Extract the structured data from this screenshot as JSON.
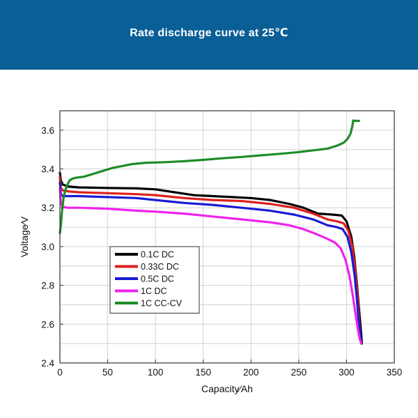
{
  "header": {
    "title": "Rate discharge curve at 25℃",
    "background": "#0a5f96"
  },
  "chart_data": {
    "type": "line",
    "title": "Rate discharge curve at 25℃",
    "xlabel": "Capacity∕Ah",
    "ylabel": "Voltage∕V",
    "xlim": [
      0,
      350
    ],
    "ylim": [
      2.4,
      3.7
    ],
    "xticks": [
      0,
      50,
      100,
      150,
      200,
      250,
      300,
      350
    ],
    "yticks": [
      2.4,
      2.6,
      2.8,
      3.0,
      3.2,
      3.4,
      3.6
    ],
    "xtick_labels": [
      "0",
      "50",
      "100",
      "150",
      "200",
      "250",
      "300",
      "350"
    ],
    "ytick_labels": [
      "2.4",
      "2.6",
      "2.8",
      "3.0",
      "3.2",
      "3.4",
      "3.6"
    ],
    "grid": true,
    "legend_position": "lower-left",
    "series": [
      {
        "name": "0.1C DC",
        "color": "#000000",
        "x": [
          0,
          1,
          3,
          8,
          20,
          50,
          80,
          100,
          120,
          140,
          160,
          180,
          200,
          220,
          240,
          255,
          270,
          285,
          295,
          300,
          305,
          308,
          311,
          313,
          314.5,
          315.5,
          316
        ],
        "y": [
          3.38,
          3.34,
          3.32,
          3.31,
          3.305,
          3.302,
          3.3,
          3.295,
          3.28,
          3.265,
          3.26,
          3.255,
          3.25,
          3.24,
          3.22,
          3.2,
          3.17,
          3.165,
          3.16,
          3.13,
          3.05,
          2.95,
          2.8,
          2.68,
          2.6,
          2.54,
          2.5
        ]
      },
      {
        "name": "0.33C DC",
        "color": "#e0201b",
        "x": [
          0,
          1,
          3,
          8,
          20,
          50,
          80,
          100,
          130,
          160,
          190,
          220,
          245,
          265,
          280,
          290,
          297,
          302,
          306,
          309,
          311.5,
          313.5,
          314.5,
          315.5
        ],
        "y": [
          3.36,
          3.3,
          3.29,
          3.285,
          3.28,
          3.275,
          3.27,
          3.265,
          3.25,
          3.24,
          3.235,
          3.22,
          3.2,
          3.17,
          3.14,
          3.13,
          3.12,
          3.08,
          3.0,
          2.88,
          2.75,
          2.6,
          2.54,
          2.5
        ]
      },
      {
        "name": "0.5C DC",
        "color": "#1a1ad4",
        "x": [
          0,
          1,
          3,
          8,
          20,
          50,
          80,
          100,
          130,
          160,
          190,
          220,
          245,
          265,
          280,
          290,
          296,
          301,
          305,
          308.5,
          311,
          313,
          314.5,
          315.5
        ],
        "y": [
          3.33,
          3.27,
          3.26,
          3.26,
          3.26,
          3.255,
          3.25,
          3.24,
          3.225,
          3.215,
          3.2,
          3.185,
          3.165,
          3.14,
          3.11,
          3.1,
          3.09,
          3.05,
          2.97,
          2.85,
          2.72,
          2.6,
          2.54,
          2.5
        ]
      },
      {
        "name": "1C DC",
        "color": "#ee22ee",
        "x": [
          0,
          1,
          3,
          8,
          20,
          50,
          80,
          100,
          130,
          160,
          190,
          220,
          240,
          255,
          268,
          280,
          288,
          294,
          299,
          303,
          306.5,
          309.5,
          312,
          314,
          315.5
        ],
        "y": [
          3.3,
          3.22,
          3.205,
          3.2,
          3.2,
          3.195,
          3.185,
          3.18,
          3.17,
          3.155,
          3.14,
          3.125,
          3.11,
          3.09,
          3.065,
          3.04,
          3.02,
          2.99,
          2.93,
          2.85,
          2.75,
          2.65,
          2.57,
          2.52,
          2.5
        ]
      },
      {
        "name": "1C CC-CV",
        "color": "#1e8c28",
        "x": [
          0,
          1,
          2,
          4,
          7,
          10,
          13,
          17,
          25,
          35,
          45,
          55,
          65,
          75,
          90,
          110,
          130,
          150,
          170,
          190,
          210,
          230,
          250,
          265,
          280,
          290,
          297,
          301,
          304,
          306,
          307,
          308,
          309,
          310,
          312,
          313
        ],
        "y": [
          3.07,
          3.11,
          3.17,
          3.26,
          3.31,
          3.34,
          3.35,
          3.355,
          3.36,
          3.375,
          3.39,
          3.405,
          3.415,
          3.425,
          3.432,
          3.435,
          3.44,
          3.447,
          3.455,
          3.462,
          3.47,
          3.478,
          3.487,
          3.496,
          3.505,
          3.52,
          3.535,
          3.555,
          3.58,
          3.62,
          3.65,
          3.648,
          3.648,
          3.648,
          3.648,
          3.648
        ]
      }
    ]
  }
}
